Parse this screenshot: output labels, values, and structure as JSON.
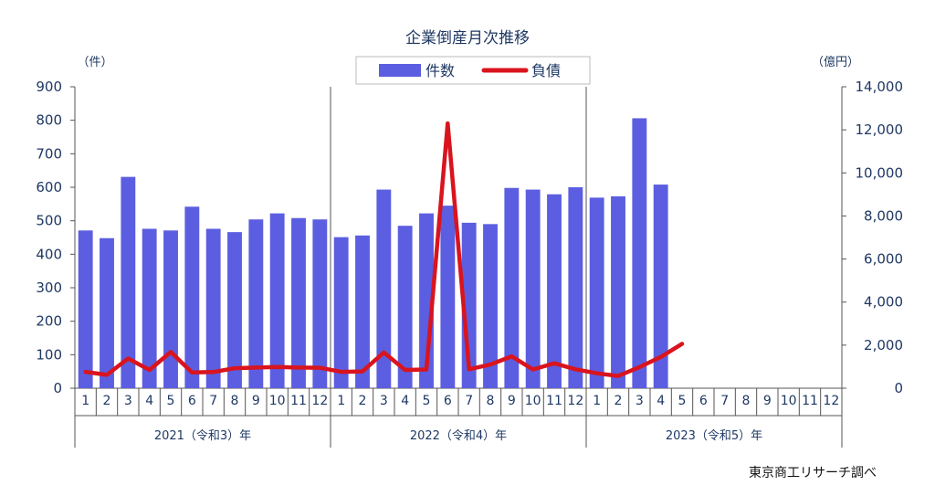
{
  "chart_data": {
    "type": "bar",
    "title": "企業倒産月次推移",
    "left_unit": "（件）",
    "right_unit": "（億円）",
    "source": "東京商工リサーチ調べ",
    "legend": {
      "placement": "top",
      "items": [
        "件数",
        "負債"
      ]
    },
    "left_axis": {
      "min": 0,
      "max": 900,
      "step": 100,
      "ticks": [
        "0",
        "100",
        "200",
        "300",
        "400",
        "500",
        "600",
        "700",
        "800",
        "900"
      ]
    },
    "right_axis": {
      "min": 0,
      "max": 14000,
      "step": 2000,
      "ticks": [
        "0",
        "2,000",
        "4,000",
        "6,000",
        "8,000",
        "10,000",
        "12,000",
        "14,000"
      ]
    },
    "years": [
      {
        "label": "2021（令和3）年",
        "months": [
          "1",
          "2",
          "3",
          "4",
          "5",
          "6",
          "7",
          "8",
          "9",
          "10",
          "11",
          "12"
        ]
      },
      {
        "label": "2022（令和4）年",
        "months": [
          "1",
          "2",
          "3",
          "4",
          "5",
          "6",
          "7",
          "8",
          "9",
          "10",
          "11",
          "12"
        ]
      },
      {
        "label": "2023（令和5）年",
        "months": [
          "1",
          "2",
          "3",
          "4",
          "5",
          "6",
          "7",
          "8",
          "9",
          "10",
          "11",
          "12"
        ]
      }
    ],
    "series": [
      {
        "name": "件数",
        "kind": "bar",
        "axis": "left",
        "color": "#5b5ee0",
        "values": [
          471,
          448,
          631,
          476,
          471,
          542,
          476,
          466,
          504,
          522,
          508,
          504,
          451,
          456,
          593,
          485,
          522,
          545,
          494,
          490,
          598,
          593,
          579,
          600,
          569,
          573,
          806,
          608,
          null,
          null,
          null,
          null,
          null,
          null,
          null,
          null
        ]
      },
      {
        "name": "負債",
        "kind": "line",
        "axis": "right",
        "color": "#d9141e",
        "values": [
          760,
          620,
          1380,
          850,
          1680,
          730,
          750,
          930,
          960,
          990,
          960,
          950,
          760,
          780,
          1660,
          850,
          870,
          12300,
          880,
          1100,
          1480,
          870,
          1160,
          880,
          690,
          570,
          980,
          1450,
          2060,
          null,
          null,
          null,
          null,
          null,
          null,
          null
        ]
      }
    ],
    "grid": false
  }
}
